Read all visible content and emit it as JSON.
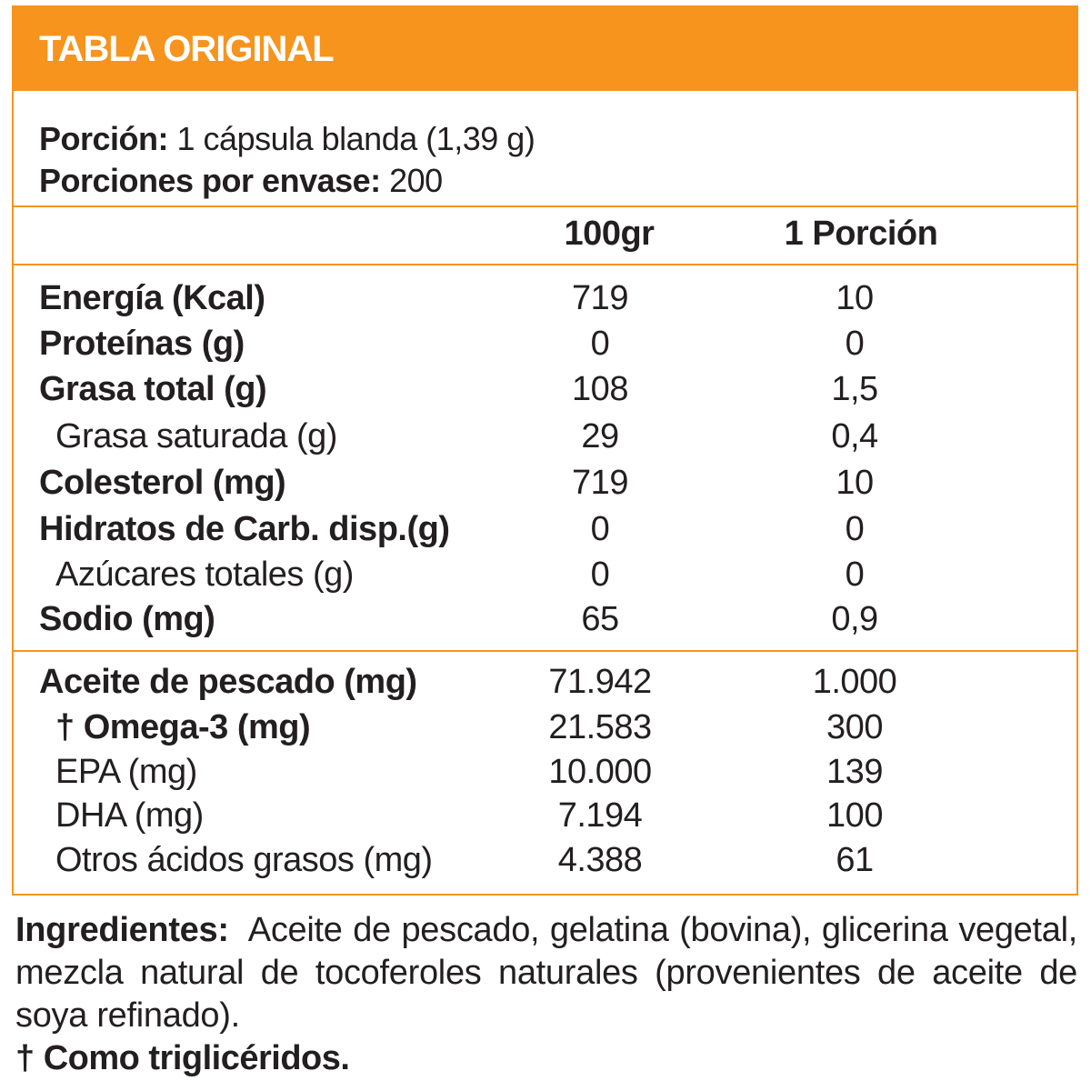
{
  "header": {
    "title": "TABLA ORIGINAL"
  },
  "serving": {
    "portion_label": "Porción:",
    "portion_value": " 1 cápsula blanda (1,39 g)",
    "per_container_label": "Porciones por envase:",
    "per_container_value": " 200"
  },
  "columns": {
    "col1": "100gr",
    "col2": "1 Porción"
  },
  "nutrients": [
    {
      "label": "Energía (Kcal)",
      "v100": "719",
      "vportion": "10"
    },
    {
      "label": "Proteínas (g)",
      "v100": "0",
      "vportion": "0"
    },
    {
      "label": "Grasa total (g)",
      "v100": "108",
      "vportion": "1,5"
    },
    {
      "label": "Grasa saturada (g)",
      "v100": "29",
      "vportion": "0,4"
    },
    {
      "label": "Colesterol (mg)",
      "v100": "719",
      "vportion": "10"
    },
    {
      "label": "Hidratos de Carb. disp.(g)",
      "v100": "0",
      "vportion": "0"
    },
    {
      "label": "Azúcares totales (g)",
      "v100": "0",
      "vportion": "0"
    },
    {
      "label": "Sodio (mg)",
      "v100": "65",
      "vportion": "0,9"
    }
  ],
  "oils": [
    {
      "label": "Aceite de pescado (mg)",
      "v100": "71.942",
      "vportion": "1.000"
    },
    {
      "label": "† Omega-3 (mg)",
      "v100": "21.583",
      "vportion": "300"
    },
    {
      "label": "EPA (mg)",
      "v100": "10.000",
      "vportion": "139"
    },
    {
      "label": "DHA (mg)",
      "v100": "7.194",
      "vportion": "100"
    },
    {
      "label": "Otros ácidos grasos (mg)",
      "v100": "4.388",
      "vportion": "61"
    }
  ],
  "ingredients": {
    "label": "Ingredientes:",
    "text": "Aceite de pescado, gelatina (bovina), glicerina vegetal, mezcla natural de tocoferoles naturales (provenientes de aceite de soya refinado)."
  },
  "footnote": "† Como triglicéridos.",
  "colors": {
    "accent": "#f7941d",
    "text": "#231f20",
    "title_text": "#ffffff"
  }
}
